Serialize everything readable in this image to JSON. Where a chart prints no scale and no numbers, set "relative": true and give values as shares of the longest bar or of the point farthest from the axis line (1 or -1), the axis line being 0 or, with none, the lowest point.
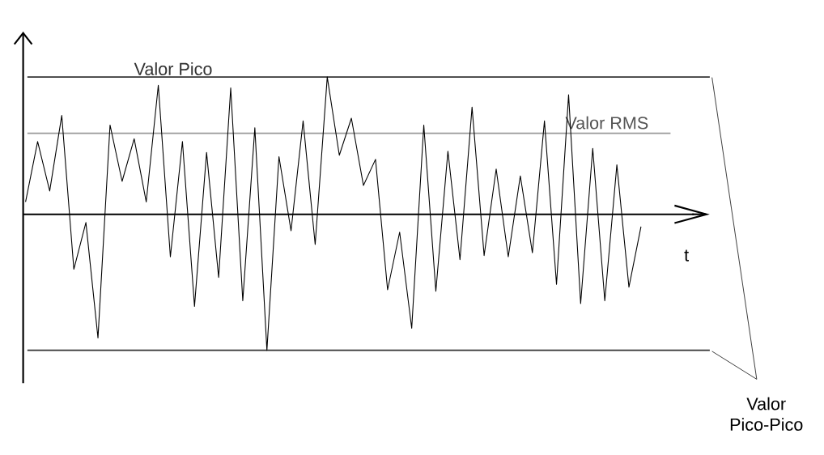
{
  "chart_data": {
    "type": "line",
    "relative": true,
    "xlabel": "t",
    "color": "#000000",
    "marker": "none",
    "line_style": "solid",
    "categories": [
      null,
      null,
      null,
      null,
      null,
      null,
      null,
      null,
      null,
      null,
      null,
      null,
      null,
      null,
      null,
      null,
      null,
      null,
      null,
      null,
      null,
      null,
      null,
      null,
      null,
      null,
      null,
      null,
      null,
      null,
      null,
      null,
      null,
      null,
      null,
      null,
      null,
      null,
      null,
      null,
      null,
      null,
      null,
      null,
      null,
      null,
      null,
      null,
      null,
      null,
      null,
      null
    ],
    "values": [
      0.09,
      0.53,
      0.17,
      0.72,
      -0.4,
      -0.06,
      -0.9,
      0.65,
      0.24,
      0.55,
      0.09,
      0.94,
      -0.31,
      0.53,
      -0.67,
      0.45,
      -0.46,
      0.92,
      -0.63,
      0.63,
      -0.99,
      0.42,
      -0.12,
      0.68,
      -0.22,
      1,
      0.43,
      0.7,
      0.21,
      0.4,
      -0.55,
      -0.13,
      -0.83,
      0.65,
      -0.56,
      0.46,
      -0.33,
      0.78,
      -0.3,
      0.33,
      -0.31,
      0.28,
      -0.28,
      0.68,
      -0.51,
      0.87,
      -0.65,
      0.48,
      -0.63,
      0.36,
      -0.53,
      -0.09
    ],
    "ref_lines": [
      {
        "axis": "y",
        "value": 1,
        "label": "Valor Pico",
        "color": "#333333"
      },
      {
        "axis": "y",
        "value": 0.59,
        "label": "Valor RMS",
        "color": "#999999"
      },
      {
        "axis": "y",
        "value": -0.99,
        "color": "#333333"
      }
    ],
    "annotations": [
      "Valor Pico-Pico"
    ]
  }
}
